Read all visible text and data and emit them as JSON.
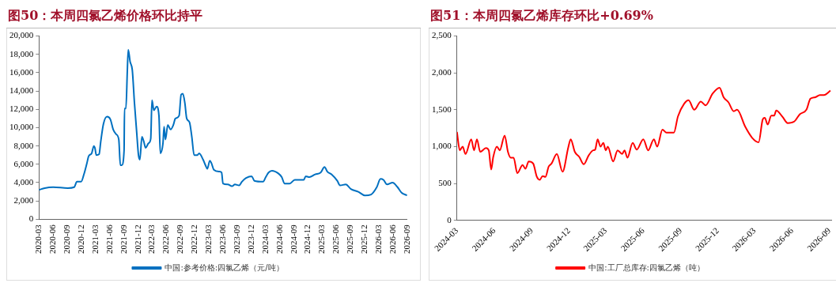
{
  "chart_data": [
    {
      "type": "line",
      "title": "图50：本周四氯乙烯价格环比持平",
      "legend": "bottom",
      "x": [
        "2020-03-01",
        "2020-04-07",
        "2020-06-01",
        "2020-09-03",
        "2020-10-14",
        "2020-11-01",
        "2020-11-28",
        "2020-12-16",
        "2021-01-04",
        "2021-01-16",
        "2021-02-04",
        "2021-02-18",
        "2021-02-25",
        "2021-03-06",
        "2021-03-24",
        "2021-04-03",
        "2021-04-21",
        "2021-05-14",
        "2021-06-05",
        "2021-06-23",
        "2021-07-11",
        "2021-07-29",
        "2021-08-08",
        "2021-08-17",
        "2021-09-01",
        "2021-09-04",
        "2021-09-13",
        "2021-09-22",
        "2021-09-28",
        "2021-10-10",
        "2021-10-24",
        "2021-11-07",
        "2021-11-21",
        "2021-12-03",
        "2021-12-12",
        "2021-12-25",
        "2022-01-06",
        "2022-01-18",
        "2022-02-06",
        "2022-02-20",
        "2022-02-28",
        "2022-03-12",
        "2022-03-30",
        "2022-04-14",
        "2022-04-23",
        "2022-05-10",
        "2022-05-17",
        "2022-05-26",
        "2022-06-10",
        "2022-06-28",
        "2022-07-16",
        "2022-07-29",
        "2022-08-22",
        "2022-09-04",
        "2022-09-15",
        "2022-09-28",
        "2022-10-10",
        "2022-10-28",
        "2022-11-12",
        "2022-11-27",
        "2022-12-18",
        "2022-12-29",
        "2023-01-24",
        "2023-02-08",
        "2023-02-20",
        "2023-03-08",
        "2023-03-19",
        "2023-04-03",
        "2023-05-09",
        "2023-05-23",
        "2023-06-01",
        "2023-07-02",
        "2023-07-29",
        "2023-08-17",
        "2023-09-13",
        "2023-10-01",
        "2023-10-28",
        "2023-12-03",
        "2023-12-21",
        "2024-02-15",
        "2024-03-03",
        "2024-03-21",
        "2024-04-12",
        "2024-05-23",
        "2024-06-14",
        "2024-07-02",
        "2024-08-04",
        "2024-09-06",
        "2024-11-03",
        "2024-11-16",
        "2024-12-09",
        "2025-01-15",
        "2025-02-20",
        "2025-03-17",
        "2025-04-04",
        "2025-05-01",
        "2025-06-07",
        "2025-06-25",
        "2025-08-01",
        "2025-09-03",
        "2025-10-21",
        "2025-12-02",
        "2026-01-11",
        "2026-02-17",
        "2026-03-13",
        "2026-04-01",
        "2026-04-24",
        "2026-05-30",
        "2026-07-01",
        "2026-07-27",
        "2026-09-01"
      ],
      "series": [
        {
          "name": "中国:参考价格:四氯乙烯（元/吨）",
          "color": "#0070c0",
          "values": [
            3200,
            3400,
            3500,
            3400,
            3500,
            4100,
            4100,
            4900,
            6100,
            6900,
            7200,
            8000,
            7800,
            7000,
            7100,
            8400,
            10400,
            11200,
            10900,
            9800,
            9300,
            8700,
            5900,
            5900,
            7500,
            12100,
            12100,
            16200,
            18500,
            17200,
            16300,
            12700,
            9600,
            7000,
            6500,
            9000,
            8500,
            7800,
            8300,
            8800,
            13000,
            11900,
            12300,
            11300,
            7200,
            8300,
            10100,
            8700,
            10300,
            9800,
            10300,
            11000,
            11300,
            13600,
            13700,
            12700,
            11000,
            10600,
            9000,
            7000,
            7000,
            7200,
            6500,
            5900,
            5500,
            6400,
            6100,
            5400,
            5200,
            5100,
            3900,
            3800,
            3600,
            3800,
            3700,
            4100,
            4500,
            4700,
            4200,
            4100,
            4600,
            5100,
            5300,
            5000,
            4600,
            3900,
            3900,
            4300,
            4300,
            4700,
            4600,
            4900,
            5100,
            5700,
            5200,
            4900,
            4200,
            3700,
            3800,
            3300,
            3000,
            2600,
            2700,
            3500,
            4400,
            4300,
            3800,
            4000,
            3500,
            2900,
            2600
          ]
        }
      ],
      "xlim": [
        "2020-03-01",
        "2026-09-01"
      ],
      "xticks": [
        "2020-03",
        "2020-06",
        "2020-09",
        "2020-12",
        "2021-03",
        "2021-06",
        "2021-09",
        "2021-12",
        "2022-03",
        "2022-06",
        "2022-09",
        "2022-12",
        "2023-03",
        "2023-06",
        "2023-09",
        "2023-12",
        "2024-03",
        "2024-06",
        "2024-09",
        "2024-12",
        "2025-03",
        "2025-06",
        "2025-09",
        "2025-12",
        "2026-03",
        "2026-06",
        "2026-09"
      ],
      "ylim": [
        0,
        20000
      ],
      "yticks": [
        {
          "value": 0,
          "label": "0"
        },
        {
          "value": 2000,
          "label": "2,000"
        },
        {
          "value": 4000,
          "label": "4,000"
        },
        {
          "value": 6000,
          "label": "6,000"
        },
        {
          "value": 8000,
          "label": "8,000"
        },
        {
          "value": 10000,
          "label": "10,000"
        },
        {
          "value": 12000,
          "label": "12,000"
        },
        {
          "value": 14000,
          "label": "14,000"
        },
        {
          "value": 16000,
          "label": "16,000"
        },
        {
          "value": 18000,
          "label": "18,000"
        },
        {
          "value": 20000,
          "label": "20,000"
        }
      ]
    },
    {
      "type": "line",
      "title": "图51：本周四氯乙烯库存环比+0.69%",
      "legend": "bottom",
      "x": [
        "2024-03-01",
        "2024-03-08",
        "2024-03-15",
        "2024-03-22",
        "2024-04-05",
        "2024-04-12",
        "2024-04-19",
        "2024-04-27",
        "2024-05-11",
        "2024-05-18",
        "2024-05-24",
        "2024-05-29",
        "2024-06-07",
        "2024-06-14",
        "2024-06-26",
        "2024-07-04",
        "2024-07-11",
        "2024-07-18",
        "2024-07-27",
        "2024-08-09",
        "2024-08-16",
        "2024-08-24",
        "2024-09-04",
        "2024-09-13",
        "2024-09-20",
        "2024-09-27",
        "2024-10-04",
        "2024-10-12",
        "2024-10-19",
        "2024-11-01",
        "2024-11-15",
        "2024-11-29",
        "2024-12-05",
        "2024-12-15",
        "2024-12-26",
        "2025-01-06",
        "2025-01-18",
        "2025-01-29",
        "2025-02-03",
        "2025-02-09",
        "2025-02-16",
        "2025-02-23",
        "2025-03-01",
        "2025-03-06",
        "2025-03-19",
        "2025-03-30",
        "2025-04-10",
        "2025-04-16",
        "2025-04-23",
        "2025-05-06",
        "2025-05-16",
        "2025-06-01",
        "2025-06-13",
        "2025-06-27",
        "2025-07-05",
        "2025-07-18",
        "2025-07-28",
        "2025-08-15",
        "2025-08-25",
        "2025-09-09",
        "2025-09-20",
        "2025-10-04",
        "2025-10-20",
        "2025-11-01",
        "2025-11-18",
        "2025-12-05",
        "2025-12-15",
        "2025-12-27",
        "2026-01-09",
        "2026-01-17",
        "2026-02-06",
        "2026-02-23",
        "2026-03-11",
        "2026-03-21",
        "2026-03-26",
        "2026-04-02",
        "2026-04-11",
        "2026-04-18",
        "2026-04-23",
        "2026-05-09",
        "2026-05-21",
        "2026-06-06",
        "2026-06-20",
        "2026-07-06",
        "2026-07-16",
        "2026-07-28",
        "2026-08-08",
        "2026-08-18",
        "2026-09-03"
      ],
      "series": [
        {
          "name": "中国:工厂总库存:四氯乙烯（吨）",
          "color": "#ff0000",
          "values": [
            1200,
            950,
            1000,
            900,
            1100,
            950,
            1100,
            930,
            980,
            950,
            690,
            860,
            1000,
            950,
            1150,
            930,
            850,
            850,
            640,
            750,
            700,
            800,
            770,
            590,
            550,
            600,
            590,
            730,
            770,
            900,
            660,
            990,
            1100,
            930,
            860,
            760,
            880,
            950,
            960,
            1100,
            1000,
            1050,
            950,
            1000,
            800,
            950,
            900,
            950,
            850,
            1050,
            960,
            1100,
            950,
            1100,
            1000,
            1230,
            1190,
            1190,
            1410,
            1580,
            1630,
            1500,
            1610,
            1560,
            1720,
            1800,
            1670,
            1600,
            1480,
            1500,
            1270,
            1120,
            1060,
            1370,
            1390,
            1300,
            1420,
            1420,
            1490,
            1400,
            1320,
            1340,
            1440,
            1500,
            1650,
            1670,
            1700,
            1700,
            1760
          ]
        }
      ],
      "xlim": [
        "2024-03-01",
        "2026-09-05"
      ],
      "xticks": [
        "2024-03",
        "2024-06",
        "2024-09",
        "2024-12",
        "2025-03",
        "2025-06",
        "2025-09",
        "2025-12",
        "2026-03",
        "2026-06",
        "2026-09"
      ],
      "ylim": [
        0,
        2500
      ],
      "yticks": [
        {
          "value": 0,
          "label": "0"
        },
        500,
        {
          "value": 1000,
          "label": "1,000"
        },
        {
          "value": 1500,
          "label": "1,500"
        },
        {
          "value": 2000,
          "label": "2,000"
        },
        {
          "value": 2500,
          "label": "2,500"
        }
      ]
    }
  ]
}
